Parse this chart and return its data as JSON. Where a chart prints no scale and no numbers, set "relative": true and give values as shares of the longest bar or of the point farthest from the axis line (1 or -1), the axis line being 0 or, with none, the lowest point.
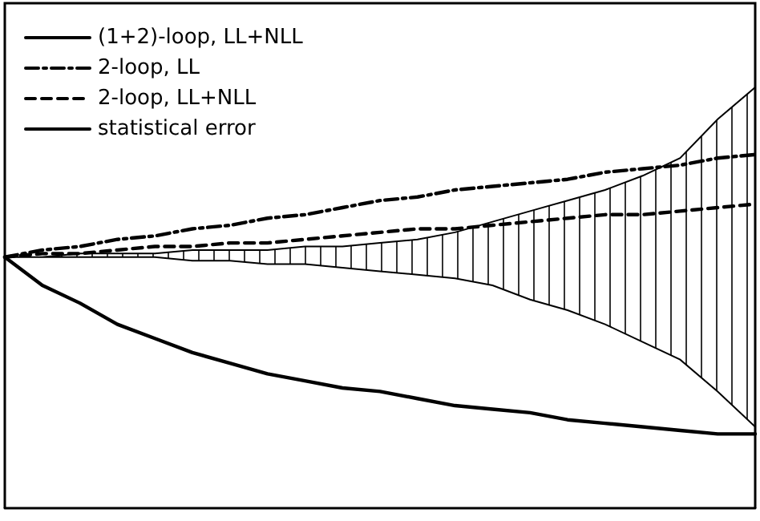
{
  "chart_data": {
    "type": "line",
    "relative": true,
    "grid": false,
    "legend": "top left",
    "marker": "none",
    "categories": [
      null,
      null,
      null,
      null,
      null,
      null,
      null,
      null,
      null,
      null,
      null,
      null,
      null,
      null,
      null,
      null,
      null,
      null,
      null,
      null,
      null
    ],
    "series": [
      {
        "name": "(1+2)-loop, LL+NLL",
        "color": "#000000",
        "line_style": "solid",
        "values": [
          0.71,
          0.63,
          0.58,
          0.52,
          0.48,
          0.44,
          0.41,
          0.38,
          0.36,
          0.34,
          0.33,
          0.31,
          0.29,
          0.28,
          0.27,
          0.25,
          0.24,
          0.23,
          0.22,
          0.21,
          0.21
        ]
      },
      {
        "name": "2-loop, LL",
        "color": "#000000",
        "line_style": "dashdot",
        "values": [
          0.71,
          0.73,
          0.74,
          0.76,
          0.77,
          0.79,
          0.8,
          0.82,
          0.83,
          0.85,
          0.87,
          0.88,
          0.9,
          0.91,
          0.92,
          0.93,
          0.95,
          0.96,
          0.97,
          0.99,
          1.0
        ]
      },
      {
        "name": "2-loop, LL+NLL",
        "color": "#000000",
        "line_style": "dashed",
        "values": [
          0.71,
          0.72,
          0.72,
          0.73,
          0.74,
          0.74,
          0.75,
          0.75,
          0.76,
          0.77,
          0.78,
          0.79,
          0.79,
          0.8,
          0.81,
          0.82,
          0.83,
          0.83,
          0.84,
          0.85,
          0.86
        ]
      },
      {
        "name": "statistical error",
        "color": "#000000",
        "line_style": "solid",
        "values": [
          null,
          null,
          null,
          null,
          null,
          null,
          null,
          null,
          null,
          null,
          null,
          null,
          null,
          null,
          null,
          null,
          null,
          null,
          null,
          null,
          null
        ],
        "lower": [
          0.71,
          0.71,
          0.71,
          0.71,
          0.71,
          0.7,
          0.7,
          0.69,
          0.69,
          0.68,
          0.67,
          0.66,
          0.65,
          0.63,
          0.59,
          0.56,
          0.52,
          0.47,
          0.42,
          0.33,
          0.23
        ],
        "upper": [
          0.71,
          0.71,
          0.72,
          0.72,
          0.72,
          0.73,
          0.73,
          0.73,
          0.74,
          0.74,
          0.75,
          0.76,
          0.78,
          0.81,
          0.84,
          0.87,
          0.9,
          0.94,
          0.99,
          1.1,
          1.19
        ]
      }
    ]
  }
}
